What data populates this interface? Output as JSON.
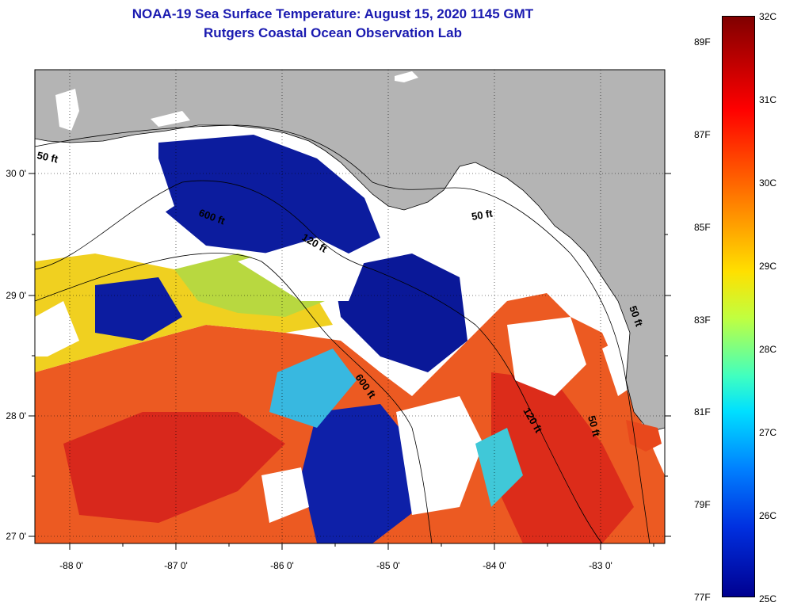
{
  "header": {
    "title": "NOAA-19 Sea Surface Temperature:  August 15, 2020 1145 GMT",
    "subtitle": "Rutgers Coastal Ocean Observation Lab"
  },
  "axes": {
    "lon_ticks": [
      "-88 0'",
      "-87 0'",
      "-86 0'",
      "-85 0'",
      "-84 0'",
      "-83 0'"
    ],
    "lat_ticks": [
      "30 0'",
      "29 0'",
      "28 0'",
      "27 0'"
    ],
    "lon_range": [
      -88.33,
      -82.45
    ],
    "lat_range": [
      26.95,
      30.85
    ]
  },
  "contours": {
    "labels": [
      "50 ft",
      "600 ft",
      "120 ft",
      "50 ft",
      "600 ft",
      "120 ft",
      "50 ft",
      "50 ft"
    ]
  },
  "colorbar": {
    "celsius_labels": [
      "32C",
      "31C",
      "30C",
      "29C",
      "28C",
      "27C",
      "26C",
      "25C"
    ],
    "fahrenheit_labels": [
      "89F",
      "87F",
      "85F",
      "83F",
      "81F",
      "79F",
      "77F"
    ],
    "range_c": [
      25,
      32
    ]
  },
  "colors": {
    "land": "#b4b4b4",
    "cloud": "#ffffff",
    "title": "#1a1ab0",
    "warm": "#e8481c",
    "cold": "#0a1a9c"
  }
}
